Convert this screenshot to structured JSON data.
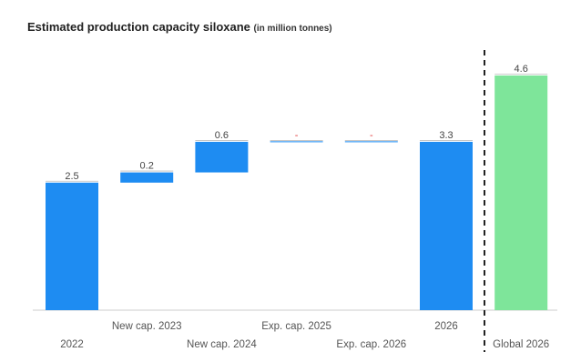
{
  "title": "Estimated production capacity siloxane",
  "subtitle": "(in million tonnes)",
  "colors": {
    "increase": "#1e8cf2",
    "total": "#1e8cf2",
    "global": "#7ee59a",
    "axis": "#cccccc",
    "divider": "#222222"
  },
  "chart_data": {
    "type": "bar",
    "subtype": "waterfall",
    "title": "Estimated production capacity siloxane",
    "subtitle": "(in million tonnes)",
    "ylim": [
      0,
      4.6
    ],
    "grid": false,
    "categories": [
      "2022",
      "New cap. 2023",
      "New cap. 2024",
      "Exp. cap. 2025",
      "Exp. cap. 2026",
      "2026",
      "Global 2026"
    ],
    "values": [
      2.5,
      0.2,
      0.6,
      0,
      0,
      3.3,
      4.6
    ],
    "bar_kinds": [
      "total",
      "increase",
      "increase",
      "increase",
      "increase",
      "total",
      "global"
    ],
    "data_labels": [
      "2.5",
      "0.2",
      "0.6",
      "-",
      "-",
      "3.3",
      "4.6"
    ]
  }
}
